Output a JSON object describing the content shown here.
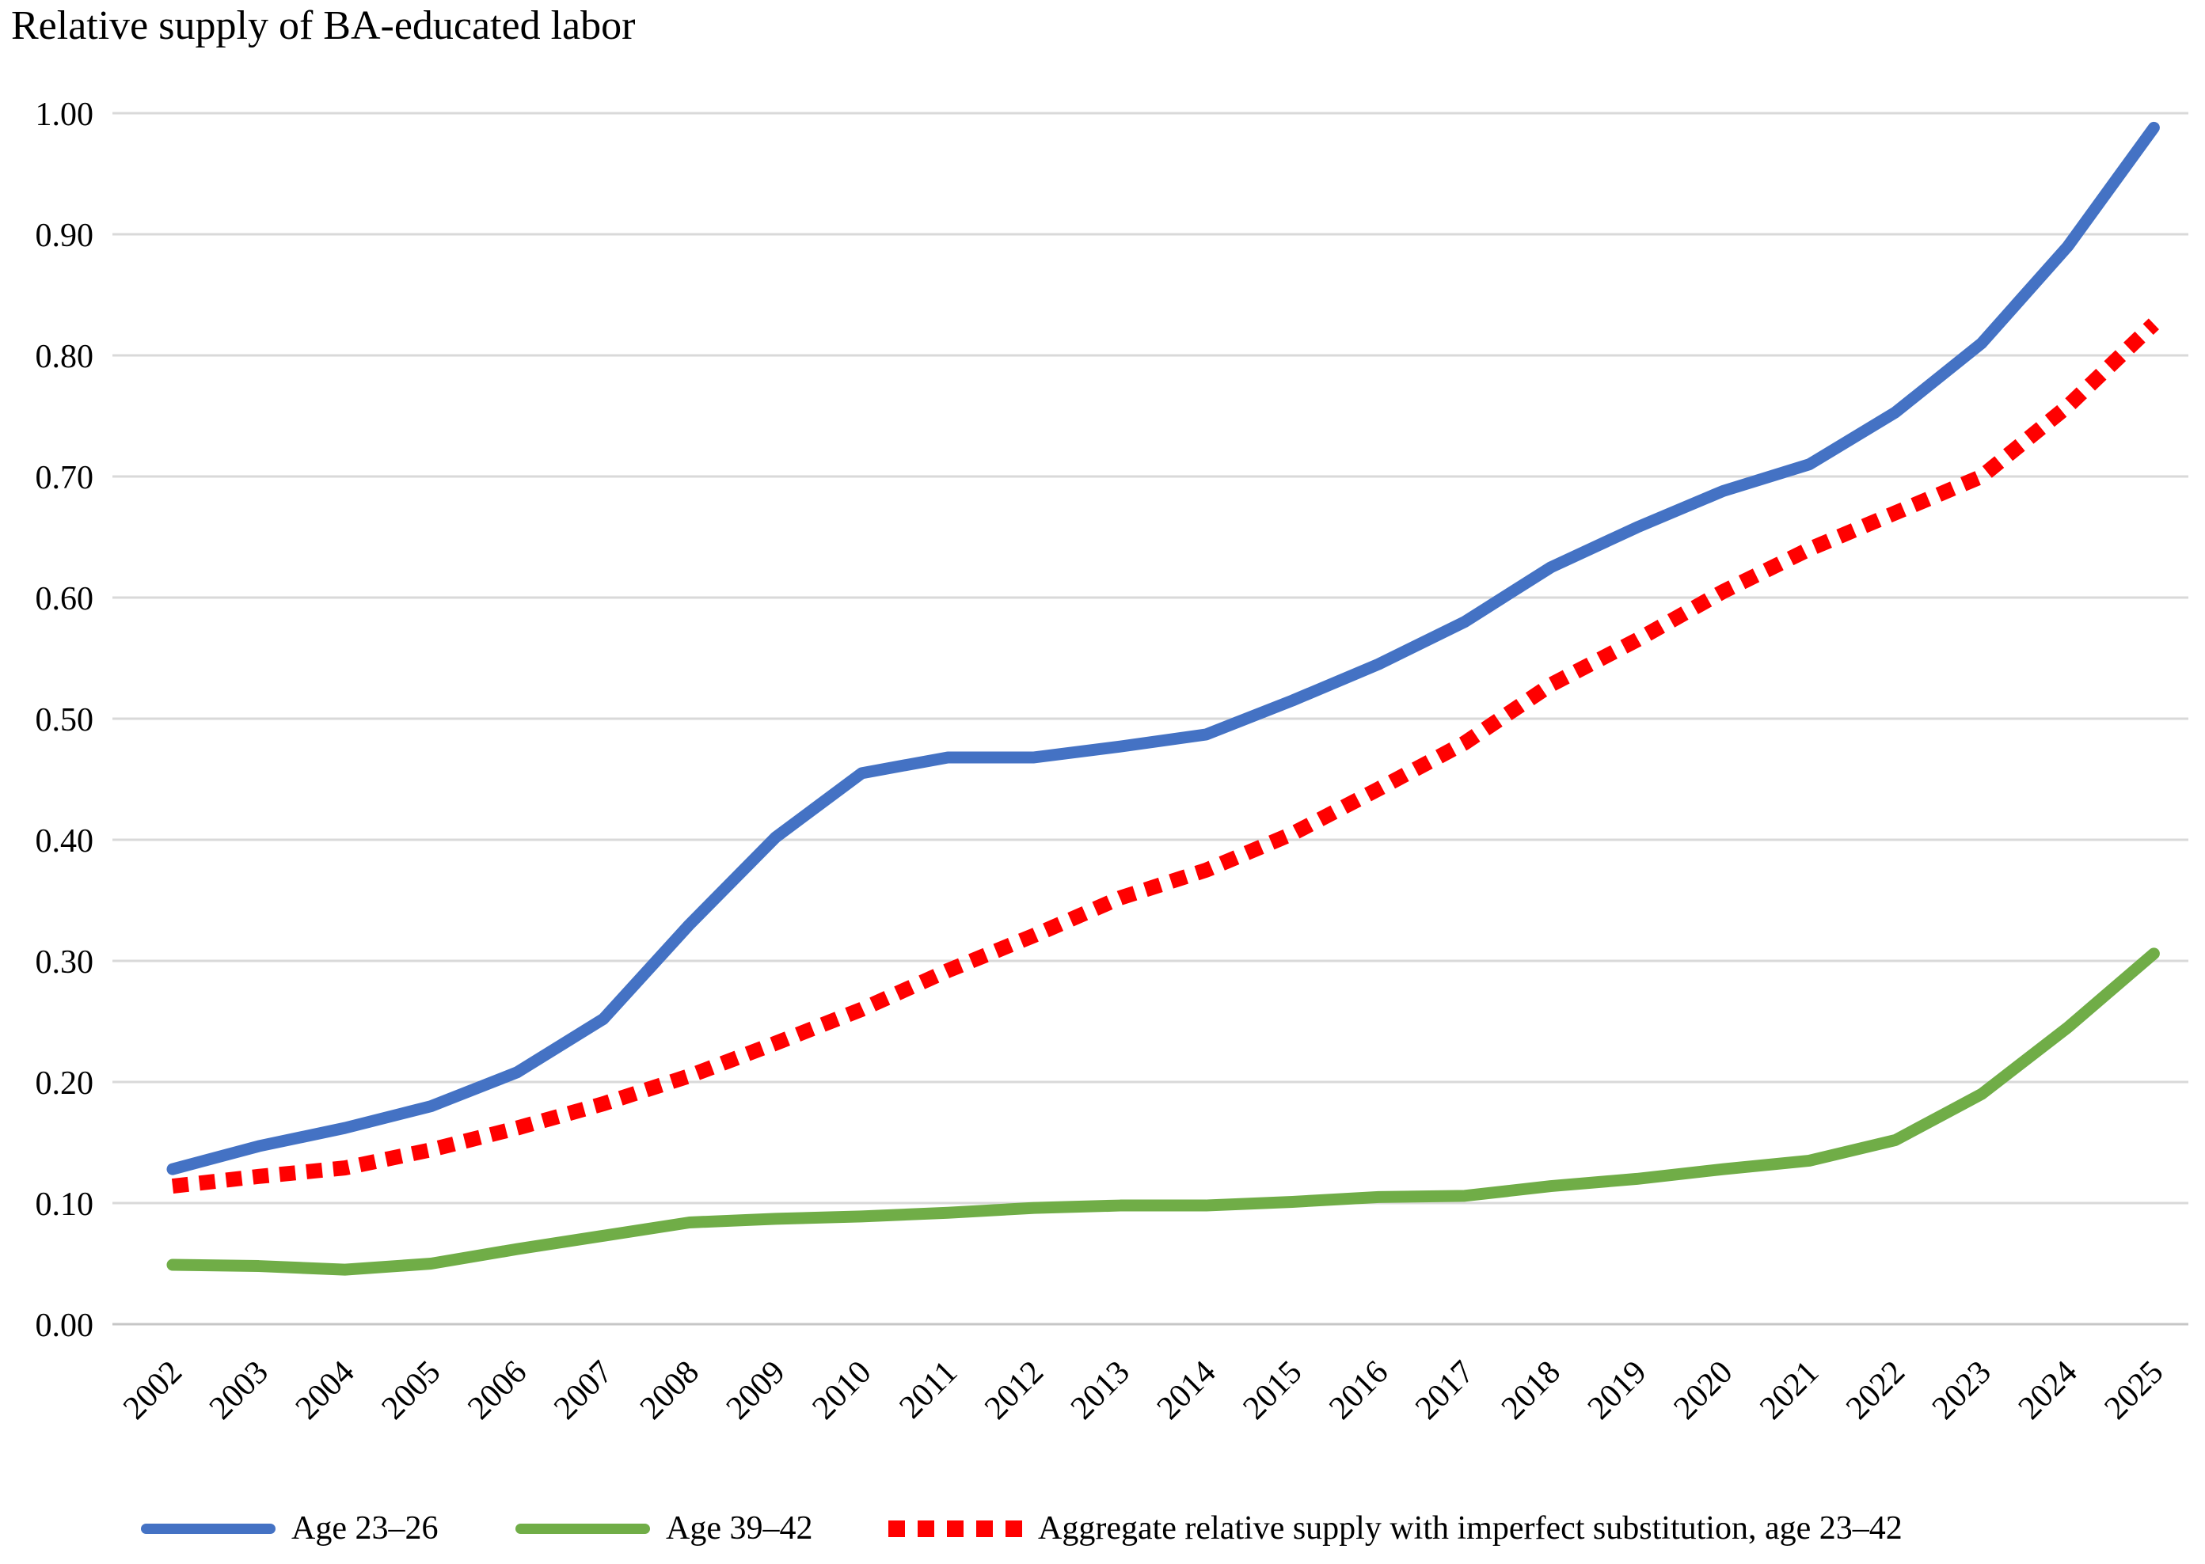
{
  "title": "Relative supply of BA-educated labor",
  "chart_data": {
    "type": "line",
    "title": "Relative supply of BA-educated labor",
    "categories": [
      2002,
      2003,
      2004,
      2005,
      2006,
      2007,
      2008,
      2009,
      2010,
      2011,
      2012,
      2013,
      2014,
      2015,
      2016,
      2017,
      2018,
      2019,
      2020,
      2021,
      2022,
      2023,
      2024,
      2025
    ],
    "series": [
      {
        "name": "Age 23–26",
        "color": "#4472C4",
        "line_style": "solid",
        "values": [
          0.128,
          0.147,
          0.162,
          0.18,
          0.208,
          0.252,
          0.33,
          0.402,
          0.455,
          0.468,
          0.468,
          0.477,
          0.487,
          0.515,
          0.545,
          0.58,
          0.625,
          0.658,
          0.688,
          0.71,
          0.753,
          0.81,
          0.89,
          0.988
        ]
      },
      {
        "name": "Age 39–42",
        "color": "#70AD47",
        "line_style": "solid",
        "values": [
          0.049,
          0.048,
          0.045,
          0.05,
          0.062,
          0.073,
          0.084,
          0.087,
          0.089,
          0.092,
          0.096,
          0.098,
          0.098,
          0.101,
          0.105,
          0.106,
          0.114,
          0.12,
          0.128,
          0.135,
          0.152,
          0.19,
          0.245,
          0.306
        ]
      },
      {
        "name": "Aggregate relative supply with imperfect substitution, age 23–42",
        "color": "#FF0000",
        "line_style": "dotted",
        "values": [
          0.114,
          0.122,
          0.129,
          0.144,
          0.162,
          0.182,
          0.205,
          0.232,
          0.26,
          0.292,
          0.321,
          0.352,
          0.375,
          0.405,
          0.442,
          0.48,
          0.528,
          0.565,
          0.605,
          0.64,
          0.67,
          0.7,
          0.758,
          0.826
        ]
      }
    ],
    "ylim": [
      0.0,
      1.0
    ],
    "y_tick_labels": [
      "0.00",
      "0.10",
      "0.20",
      "0.30",
      "0.40",
      "0.50",
      "0.60",
      "0.70",
      "0.80",
      "0.90",
      "1.00"
    ],
    "x_tick_labels": [
      "2002",
      "2003",
      "2004",
      "2005",
      "2006",
      "2007",
      "2008",
      "2009",
      "2010",
      "2011",
      "2012",
      "2013",
      "2014",
      "2015",
      "2016",
      "2017",
      "2018",
      "2019",
      "2020",
      "2021",
      "2022",
      "2023",
      "2024",
      "2025"
    ],
    "grid": "horizontal",
    "gridline_color": "#D9D9D9",
    "axis_line_color": "#C6C6C6",
    "legend_position": "bottom",
    "x_label_rotation_deg": 45
  },
  "legend": {
    "items": [
      {
        "label": "Age 23–26",
        "swatch": "solid-line",
        "color": "#4472C4"
      },
      {
        "label": "Age 39–42",
        "swatch": "solid-line",
        "color": "#70AD47"
      },
      {
        "label": "Aggregate relative supply with imperfect substitution, age 23–42",
        "swatch": "dotted-line",
        "color": "#FF0000"
      }
    ]
  }
}
